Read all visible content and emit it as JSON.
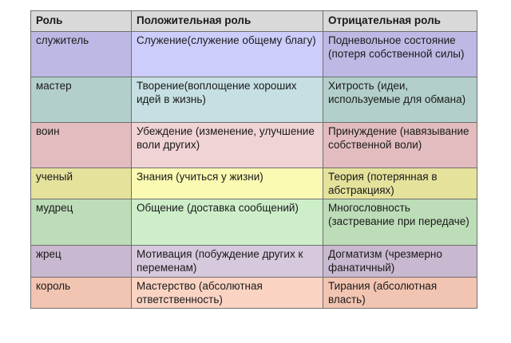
{
  "header": {
    "role": "Роль",
    "positive": "Положительная роль",
    "negative": "Отрицательная роль"
  },
  "rows": [
    {
      "role": "служитель",
      "positive": "Служение(служение общему благу)",
      "negative": "Подневольное состояние (потеря собственной силы)",
      "color_role": "#bdb9e4",
      "color_positive": "#cdcdfb",
      "color_negative": "#bdb9e4"
    },
    {
      "role": "мастер",
      "positive": "Творение(воплощение хороших идей в жизнь)",
      "negative": "Хитрость (идеи, используемые для обмана)",
      "color_role": "#b3cfcb",
      "color_positive": "#c6dfe2",
      "color_negative": "#b3cfcb"
    },
    {
      "role": "воин",
      "positive": "Убеждение (изменение, улучшение воли других)",
      "negative": "Принуждение (навязывание собственной воли)",
      "color_role": "#e2bcbe",
      "color_positive": "#f0d3d5",
      "color_negative": "#e2bcbe"
    },
    {
      "role": "ученый",
      "positive": "Знания (учиться у жизни)",
      "negative": "Теория (потерянная в абстракциях)",
      "color_role": "#e5e29c",
      "color_positive": "#fafab2",
      "color_negative": "#e5e29c"
    },
    {
      "role": "мудрец",
      "positive": "Общение (доставка сообщений)",
      "negative": "Многословность (застревание при передаче)",
      "color_role": "#bddcb8",
      "color_positive": "#cdeec9",
      "color_negative": "#bddcb8"
    },
    {
      "role": "жрец",
      "positive": "Мотивация (побуждение других к переменам)",
      "negative": "Догматизм (чрезмерно фанатичный)",
      "color_role": "#c8b8d0",
      "color_positive": "#d6c8dd",
      "color_negative": "#c8b8d0"
    },
    {
      "role": "король",
      "positive": "Мастерство (абсолютная ответственность)",
      "negative": "Тирания (абсолютная власть)",
      "color_role": "#f2c4b2",
      "color_positive": "#fad3c3",
      "color_negative": "#f2c4b2"
    }
  ]
}
